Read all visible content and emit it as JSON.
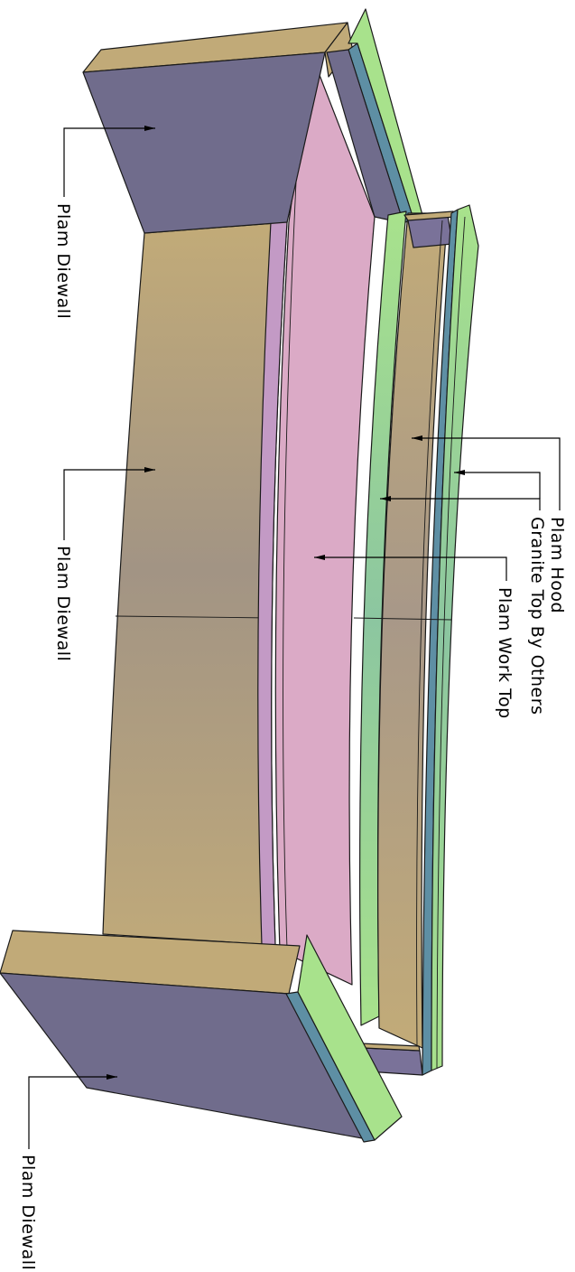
{
  "drawing": {
    "colors": {
      "diewall_face": "#706c8c",
      "diewall_top": "#c1aa78",
      "diewall_front_light": "#c2ab78",
      "diewall_front_dark": "#a29484",
      "work_top": "#dbaac6",
      "work_top_edge": "#c39ac5",
      "granite": "#a8e28c",
      "granite_edge": "#5e8fa4",
      "hood": "#c2ab78",
      "hood_end": "#7a7299"
    },
    "labels": {
      "diewall_top": "Plam Diewall",
      "diewall_center": "Plam Diewall",
      "diewall_bottom": "Plam Diewall",
      "hood": "Plam Hood",
      "granite": "Granite Top By Others",
      "work_top": "Plam Work Top"
    }
  }
}
